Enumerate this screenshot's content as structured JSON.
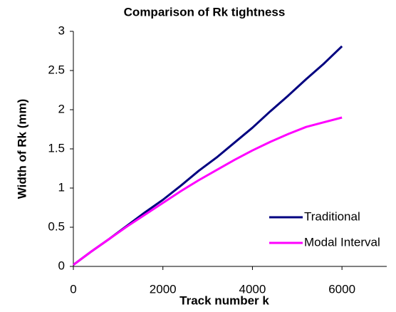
{
  "chart_data": {
    "type": "line",
    "title": "Comparison of Rk tightness",
    "x_label": "Track number k",
    "y_label": "Width of Rk (mm)",
    "x": [
      0,
      400,
      800,
      1200,
      1600,
      2000,
      2400,
      2800,
      3200,
      3600,
      4000,
      4400,
      4800,
      5200,
      5600,
      6000
    ],
    "series": [
      {
        "name": "Traditional",
        "color": "#000080",
        "values": [
          0.02,
          0.19,
          0.35,
          0.52,
          0.69,
          0.85,
          1.03,
          1.22,
          1.39,
          1.58,
          1.77,
          1.98,
          2.18,
          2.39,
          2.59,
          2.81
        ]
      },
      {
        "name": "Modal Interval",
        "color": "#ff00ff",
        "values": [
          0.02,
          0.19,
          0.35,
          0.51,
          0.66,
          0.81,
          0.96,
          1.1,
          1.23,
          1.36,
          1.48,
          1.59,
          1.69,
          1.78,
          1.84,
          1.9
        ]
      }
    ],
    "xlim": [
      0,
      7000
    ],
    "xticks": [
      0,
      2000,
      4000,
      6000
    ],
    "ylim": [
      0,
      3
    ],
    "yticks": [
      0,
      0.5,
      1,
      1.5,
      2,
      2.5,
      3
    ],
    "legend": "lower-right",
    "grid": false
  }
}
